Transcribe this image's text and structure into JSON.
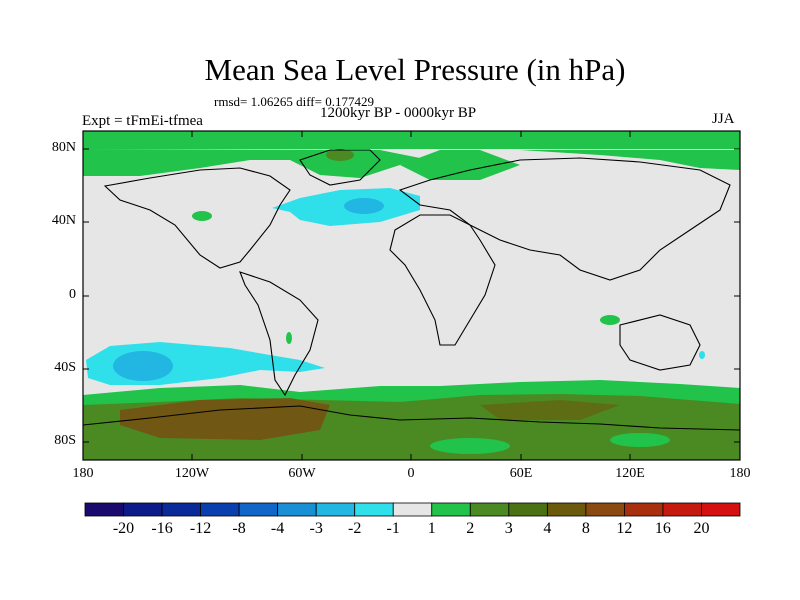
{
  "title": "Mean Sea Level Pressure (in hPa)",
  "stats": "rmsd= 1.06265 diff= 0.177429",
  "experiment": "Expt = tFmEi-tfmea",
  "period": "1200kyr BP - 0000kyr BP",
  "season": "JJA",
  "lat_labels": [
    "80N",
    "40N",
    "0",
    "40S",
    "80S"
  ],
  "lon_labels": [
    "180",
    "120W",
    "60W",
    "0",
    "60E",
    "120E",
    "180"
  ],
  "colorbar": {
    "levels": [
      "-20",
      "-16",
      "-12",
      "-8",
      "-4",
      "-3",
      "-2",
      "-1",
      "1",
      "2",
      "3",
      "4",
      "8",
      "12",
      "16",
      "20"
    ],
    "colors": [
      "#1a0a6e",
      "#0c1a8a",
      "#0a2a9a",
      "#0a3fae",
      "#1166c8",
      "#1990d6",
      "#22b6e2",
      "#2fe0ea",
      "#e6e6e6",
      "#21c34a",
      "#4b8a22",
      "#4b7212",
      "#6b5a0b",
      "#8a4a10",
      "#a8300e",
      "#c41a10",
      "#d41010"
    ]
  },
  "map_colors": {
    "neutral": "#e6e6e6",
    "green": "#21c34a",
    "darkgreen": "#4b8a22",
    "olive": "#4b7212",
    "brown": "#7a4a12",
    "cyan": "#2fe0ea",
    "blue": "#22b6e2"
  }
}
